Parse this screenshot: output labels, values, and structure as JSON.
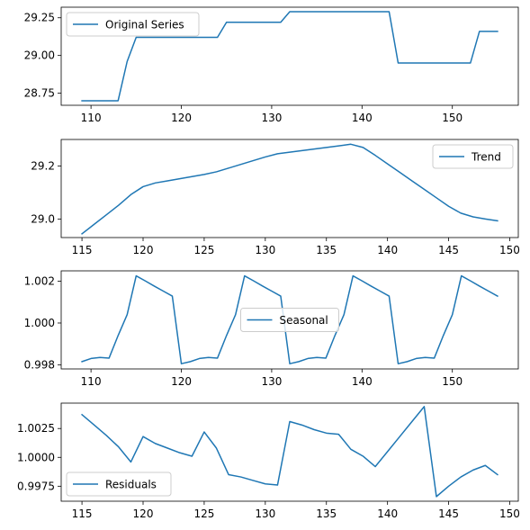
{
  "colors": {
    "line": "#1f77b4",
    "axes": "#000000",
    "background": "#ffffff",
    "legend_border": "#cccccc"
  },
  "chart_data": [
    {
      "type": "line",
      "series": [
        {
          "name": "Original Series",
          "x": [
            109,
            110,
            111,
            112,
            113,
            114,
            115,
            116,
            117,
            118,
            119,
            120,
            121,
            122,
            123,
            124,
            125,
            126,
            127,
            128,
            129,
            130,
            131,
            132,
            133,
            134,
            135,
            136,
            137,
            138,
            139,
            140,
            141,
            142,
            143,
            144,
            145,
            146,
            147,
            148,
            149,
            150,
            151,
            152,
            153,
            154,
            155
          ],
          "values": [
            28.7,
            28.7,
            28.7,
            28.7,
            28.7,
            28.96,
            29.12,
            29.12,
            29.12,
            29.12,
            29.12,
            29.12,
            29.12,
            29.12,
            29.12,
            29.12,
            29.22,
            29.22,
            29.22,
            29.22,
            29.22,
            29.22,
            29.22,
            29.29,
            29.29,
            29.29,
            29.29,
            29.29,
            29.29,
            29.29,
            29.29,
            29.29,
            29.29,
            29.29,
            29.29,
            28.95,
            28.95,
            28.95,
            28.95,
            28.95,
            28.95,
            28.95,
            28.95,
            28.95,
            29.16,
            29.16,
            29.16
          ]
        }
      ],
      "xlim": [
        106.7,
        157.3
      ],
      "ylim": [
        28.67,
        29.32
      ],
      "xticks": [
        110,
        120,
        130,
        140,
        150
      ],
      "xtick_labels": [
        "110",
        "120",
        "130",
        "140",
        "150"
      ],
      "yticks": [
        28.75,
        29.0,
        29.25
      ],
      "ytick_labels": [
        "28.75",
        "29.00",
        "29.25"
      ],
      "legend": "upper-left"
    },
    {
      "type": "line",
      "series": [
        {
          "name": "Trend",
          "x": [
            115,
            116,
            117,
            118,
            119,
            120,
            121,
            122,
            123,
            124,
            125,
            126,
            127,
            128,
            129,
            130,
            131,
            132,
            133,
            134,
            135,
            136,
            137,
            138,
            139,
            140,
            141,
            142,
            143,
            144,
            145,
            146,
            147,
            148,
            149
          ],
          "values": [
            28.944,
            28.98,
            29.016,
            29.052,
            29.092,
            29.122,
            29.136,
            29.144,
            29.152,
            29.16,
            29.168,
            29.178,
            29.192,
            29.206,
            29.22,
            29.234,
            29.246,
            29.252,
            29.258,
            29.264,
            29.27,
            29.276,
            29.282,
            29.27,
            29.24,
            29.208,
            29.176,
            29.144,
            29.112,
            29.08,
            29.048,
            29.022,
            29.008,
            29.0,
            28.993
          ]
        }
      ],
      "xlim": [
        113.3,
        150.7
      ],
      "ylim": [
        28.93,
        29.3
      ],
      "xticks": [
        115,
        120,
        125,
        130,
        135,
        140,
        145,
        150
      ],
      "xtick_labels": [
        "115",
        "120",
        "125",
        "130",
        "135",
        "140",
        "145",
        "150"
      ],
      "yticks": [
        29.0,
        29.2
      ],
      "ytick_labels": [
        "29.0",
        "29.2"
      ],
      "legend": "upper-right"
    },
    {
      "type": "line",
      "series": [
        {
          "name": "Seasonal",
          "x": [
            109,
            110,
            111,
            112,
            113,
            114,
            115,
            116,
            117,
            118,
            119,
            120,
            121,
            122,
            123,
            124,
            125,
            126,
            127,
            128,
            129,
            130,
            131,
            132,
            133,
            134,
            135,
            136,
            137,
            138,
            139,
            140,
            141,
            142,
            143,
            144,
            145,
            146,
            147,
            148,
            149,
            150,
            151,
            152,
            153,
            154,
            155
          ],
          "values": [
            0.99815,
            0.9983,
            0.99835,
            0.99832,
            0.9994,
            1.0004,
            1.00226,
            1.00202,
            1.00177,
            1.00153,
            1.00129,
            0.99805,
            0.99815,
            0.9983,
            0.99835,
            0.99832,
            0.9994,
            1.0004,
            1.00226,
            1.00202,
            1.00177,
            1.00153,
            1.00129,
            0.99805,
            0.99815,
            0.9983,
            0.99835,
            0.99832,
            0.9994,
            1.0004,
            1.00226,
            1.00202,
            1.00177,
            1.00153,
            1.00129,
            0.99805,
            0.99815,
            0.9983,
            0.99835,
            0.99832,
            0.9994,
            1.0004,
            1.00226,
            1.00202,
            1.00177,
            1.00153,
            1.00129
          ]
        }
      ],
      "xlim": [
        106.7,
        157.3
      ],
      "ylim": [
        0.9978,
        1.0025
      ],
      "xticks": [
        110,
        120,
        130,
        140,
        150
      ],
      "xtick_labels": [
        "110",
        "120",
        "130",
        "140",
        "150"
      ],
      "yticks": [
        0.998,
        1.0,
        1.002
      ],
      "ytick_labels": [
        "0.998",
        "1.000",
        "1.002"
      ],
      "legend": "center"
    },
    {
      "type": "line",
      "series": [
        {
          "name": "Residuals",
          "x": [
            115,
            116,
            117,
            118,
            119,
            120,
            121,
            122,
            123,
            124,
            125,
            126,
            127,
            128,
            129,
            130,
            131,
            132,
            133,
            134,
            135,
            136,
            137,
            138,
            139,
            140,
            141,
            142,
            143,
            144,
            145,
            146,
            147,
            148,
            149
          ],
          "values": [
            1.0037,
            1.0028,
            1.0019,
            1.0009,
            0.9996,
            1.0018,
            1.0012,
            1.0008,
            1.0004,
            1.0001,
            1.0022,
            1.0008,
            0.9985,
            0.9983,
            0.998,
            0.9977,
            0.9976,
            1.0031,
            1.0028,
            1.0024,
            1.0021,
            1.002,
            1.0007,
            1.0001,
            0.9992,
            1.0005,
            1.0018,
            1.0031,
            1.0044,
            0.9966,
            0.9975,
            0.9983,
            0.9989,
            0.9993,
            0.9985
          ]
        }
      ],
      "xlim": [
        113.3,
        150.7
      ],
      "ylim": [
        0.9962,
        1.0047
      ],
      "xticks": [
        115,
        120,
        125,
        130,
        135,
        140,
        145,
        150
      ],
      "xtick_labels": [
        "115",
        "120",
        "125",
        "130",
        "135",
        "140",
        "145",
        "150"
      ],
      "yticks": [
        0.9975,
        1.0,
        1.0025
      ],
      "ytick_labels": [
        "0.9975",
        "1.0000",
        "1.0025"
      ],
      "legend": "lower-left"
    }
  ]
}
